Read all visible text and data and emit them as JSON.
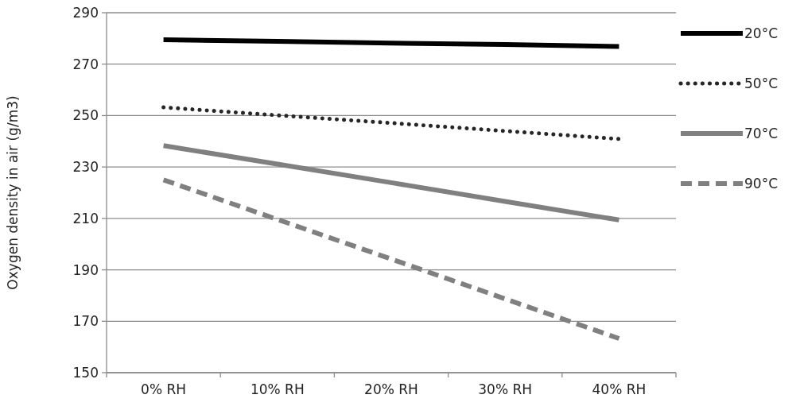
{
  "chart_data": {
    "type": "line",
    "ylabel": "Oxygen density in air (g/m3)",
    "categories": [
      "0% RH",
      "10% RH",
      "20% RH",
      "30% RH",
      "40% RH"
    ],
    "series": [
      {
        "name": "20°C",
        "color": "#000000",
        "line_style": "solid",
        "values": [
          279.5,
          278.9,
          278.2,
          277.6,
          276.9
        ]
      },
      {
        "name": "50°C",
        "color": "#262626",
        "line_style": "dotted",
        "values": [
          253.2,
          250.1,
          247.1,
          244.0,
          240.9
        ]
      },
      {
        "name": "70°C",
        "color": "#808080",
        "line_style": "solid",
        "values": [
          238.3,
          231.1,
          223.9,
          216.6,
          209.4
        ]
      },
      {
        "name": "90°C",
        "color": "#808080",
        "line_style": "dashed",
        "values": [
          225.0,
          209.6,
          194.2,
          178.7,
          163.3
        ]
      }
    ],
    "ylim": [
      150,
      290
    ],
    "yticks": [
      150,
      170,
      190,
      210,
      230,
      250,
      270,
      290
    ],
    "grid": "y",
    "legend": "right",
    "marker": "none"
  }
}
